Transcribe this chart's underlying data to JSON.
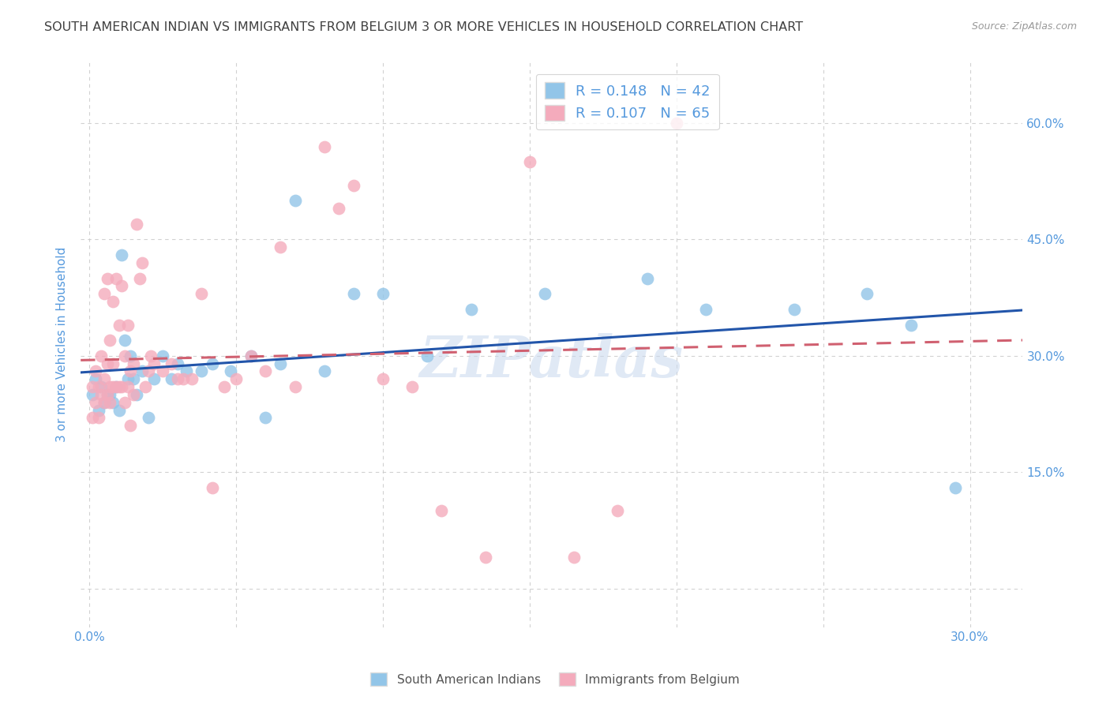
{
  "title": "SOUTH AMERICAN INDIAN VS IMMIGRANTS FROM BELGIUM 3 OR MORE VEHICLES IN HOUSEHOLD CORRELATION CHART",
  "source": "Source: ZipAtlas.com",
  "ylabel": "3 or more Vehicles in Household",
  "xlim": [
    -0.003,
    0.318
  ],
  "ylim": [
    -0.05,
    0.68
  ],
  "R_blue": 0.148,
  "N_blue": 42,
  "R_pink": 0.107,
  "N_pink": 65,
  "blue_color": "#92C5E8",
  "pink_color": "#F4ABBC",
  "line_blue": "#2255AA",
  "line_pink": "#D06070",
  "title_color": "#404040",
  "axis_label_color": "#5599DD",
  "legend_text_color": "#5599DD",
  "watermark": "ZIPatlas",
  "blue_x": [
    0.001,
    0.002,
    0.003,
    0.004,
    0.005,
    0.006,
    0.007,
    0.008,
    0.009,
    0.01,
    0.011,
    0.012,
    0.013,
    0.014,
    0.015,
    0.016,
    0.018,
    0.02,
    0.022,
    0.025,
    0.028,
    0.03,
    0.033,
    0.038,
    0.042,
    0.048,
    0.055,
    0.06,
    0.065,
    0.07,
    0.08,
    0.09,
    0.1,
    0.115,
    0.13,
    0.155,
    0.19,
    0.21,
    0.24,
    0.265,
    0.28,
    0.295
  ],
  "blue_y": [
    0.25,
    0.27,
    0.23,
    0.26,
    0.24,
    0.25,
    0.25,
    0.24,
    0.26,
    0.23,
    0.43,
    0.32,
    0.27,
    0.3,
    0.27,
    0.25,
    0.28,
    0.22,
    0.27,
    0.3,
    0.27,
    0.29,
    0.28,
    0.28,
    0.29,
    0.28,
    0.3,
    0.22,
    0.29,
    0.5,
    0.28,
    0.38,
    0.38,
    0.3,
    0.36,
    0.38,
    0.4,
    0.36,
    0.36,
    0.38,
    0.34,
    0.13
  ],
  "pink_x": [
    0.001,
    0.001,
    0.002,
    0.002,
    0.003,
    0.003,
    0.004,
    0.004,
    0.005,
    0.005,
    0.005,
    0.006,
    0.006,
    0.006,
    0.007,
    0.007,
    0.007,
    0.008,
    0.008,
    0.008,
    0.009,
    0.009,
    0.01,
    0.01,
    0.011,
    0.011,
    0.012,
    0.012,
    0.013,
    0.013,
    0.014,
    0.014,
    0.015,
    0.015,
    0.016,
    0.017,
    0.018,
    0.019,
    0.02,
    0.021,
    0.022,
    0.025,
    0.028,
    0.03,
    0.032,
    0.035,
    0.038,
    0.042,
    0.046,
    0.05,
    0.055,
    0.06,
    0.065,
    0.07,
    0.08,
    0.085,
    0.09,
    0.1,
    0.11,
    0.12,
    0.135,
    0.15,
    0.165,
    0.18,
    0.2
  ],
  "pink_y": [
    0.26,
    0.22,
    0.24,
    0.28,
    0.22,
    0.26,
    0.25,
    0.3,
    0.24,
    0.27,
    0.38,
    0.25,
    0.29,
    0.4,
    0.26,
    0.32,
    0.24,
    0.26,
    0.29,
    0.37,
    0.26,
    0.4,
    0.26,
    0.34,
    0.26,
    0.39,
    0.3,
    0.24,
    0.34,
    0.26,
    0.21,
    0.28,
    0.29,
    0.25,
    0.47,
    0.4,
    0.42,
    0.26,
    0.28,
    0.3,
    0.29,
    0.28,
    0.29,
    0.27,
    0.27,
    0.27,
    0.38,
    0.13,
    0.26,
    0.27,
    0.3,
    0.28,
    0.44,
    0.26,
    0.57,
    0.49,
    0.52,
    0.27,
    0.26,
    0.1,
    0.04,
    0.55,
    0.04,
    0.1,
    0.6
  ],
  "legend_blue_label": "South American Indians",
  "legend_pink_label": "Immigrants from Belgium",
  "grid_color": "#cccccc",
  "background_color": "#ffffff",
  "x_ticks": [
    0.0,
    0.05,
    0.1,
    0.15,
    0.2,
    0.25,
    0.3
  ],
  "y_ticks": [
    0.0,
    0.15,
    0.3,
    0.45,
    0.6
  ]
}
